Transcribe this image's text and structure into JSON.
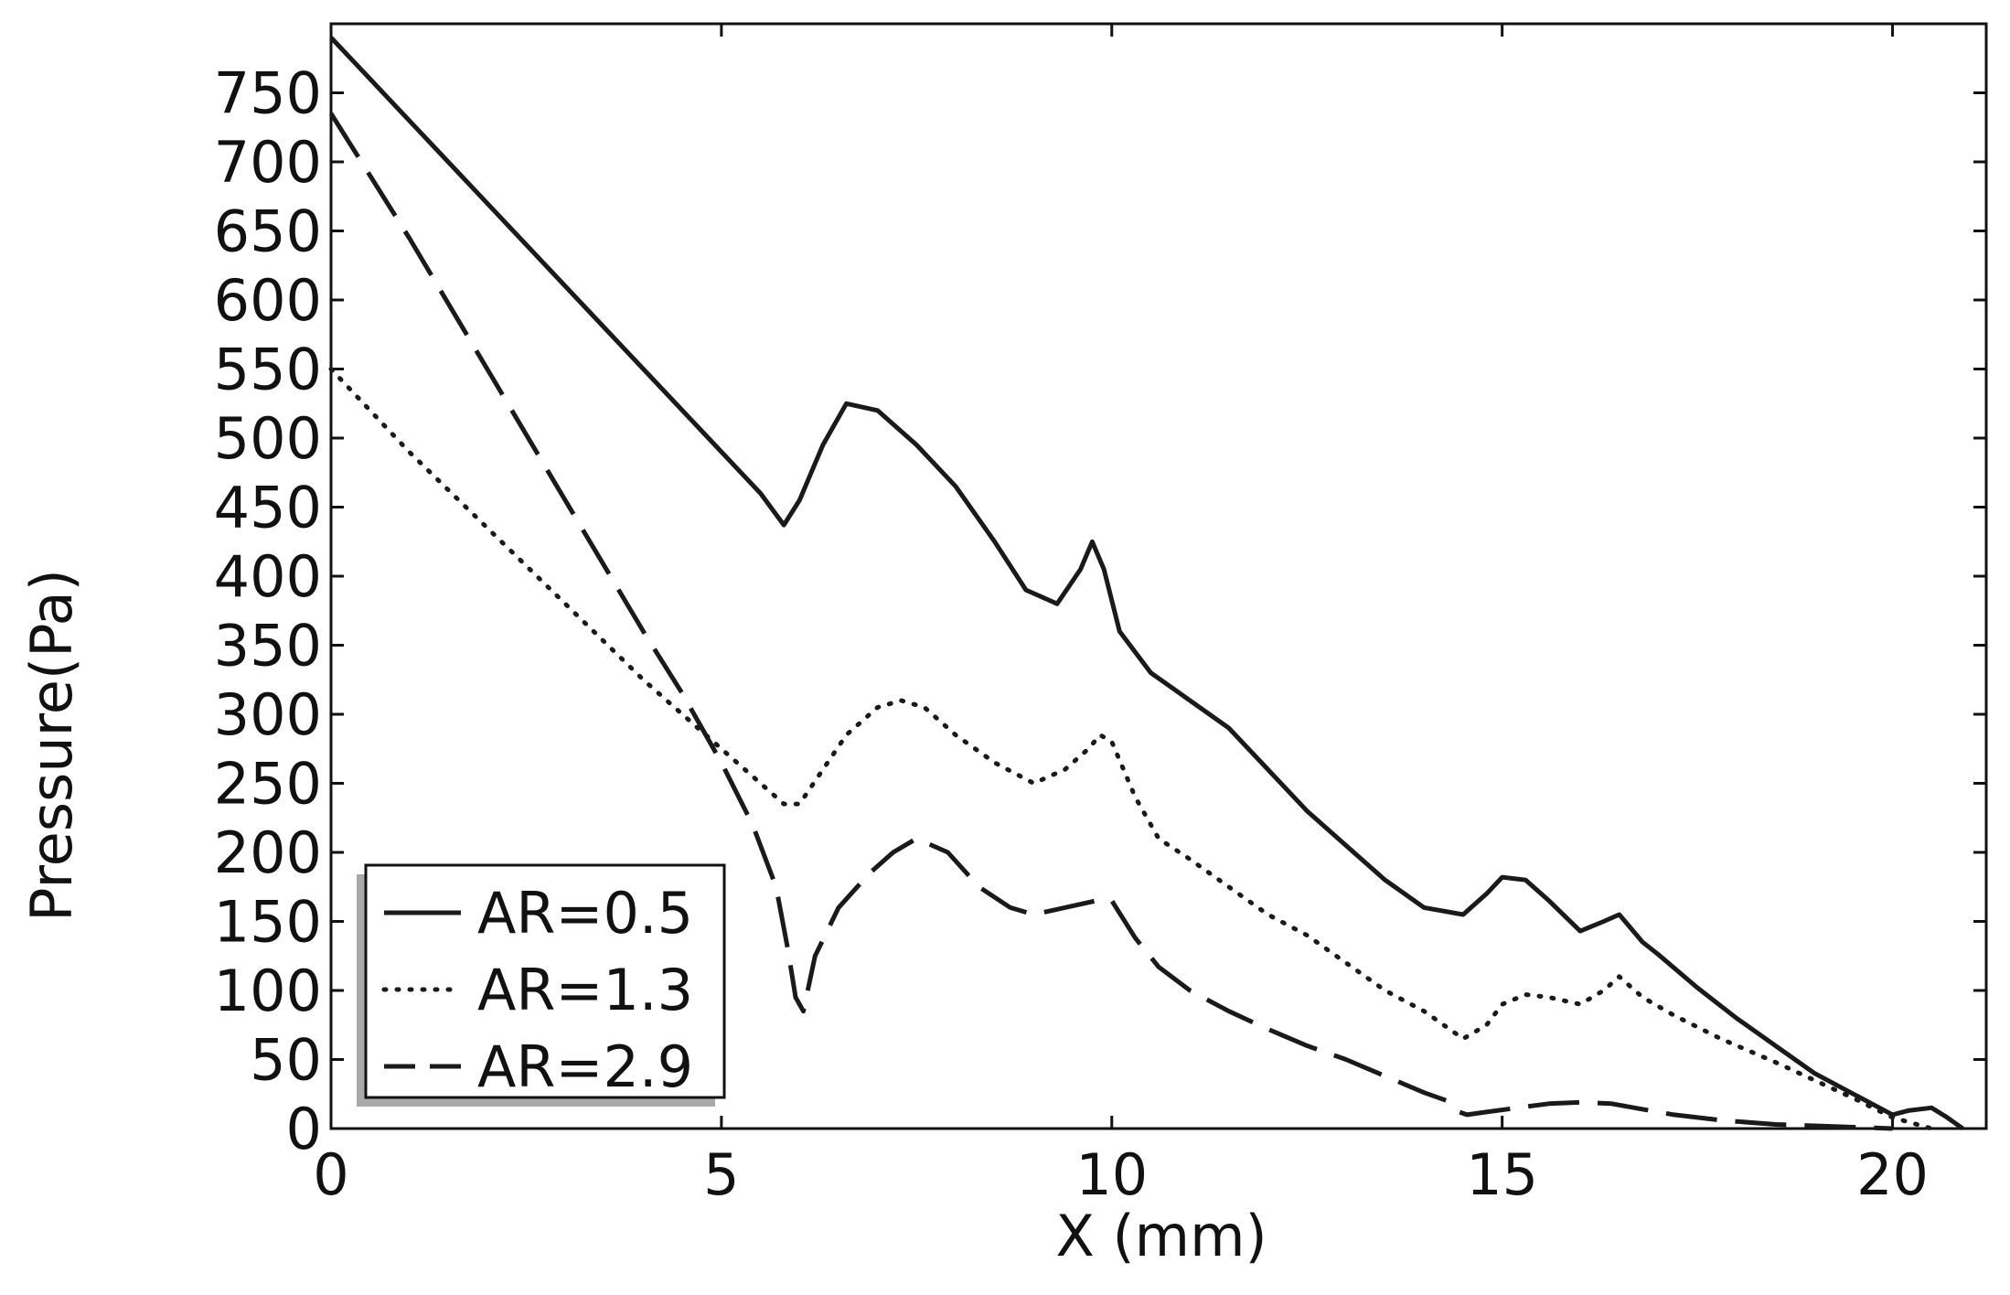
{
  "chart_data": {
    "type": "line",
    "title": "",
    "xlabel": "X (mm)",
    "ylabel": "Pressure(Pa)",
    "xlim": [
      0,
      21.2
    ],
    "ylim": [
      0,
      800
    ],
    "xticks": [
      0,
      5,
      10,
      15,
      20
    ],
    "xtick_labels": [
      "0",
      "5",
      "10",
      "15",
      "20"
    ],
    "yticks": [
      0,
      50,
      100,
      150,
      200,
      250,
      300,
      350,
      400,
      450,
      500,
      550,
      600,
      650,
      700,
      750
    ],
    "ytick_labels": [
      "0",
      "50",
      "100",
      "150",
      "200",
      "250",
      "300",
      "350",
      "400",
      "450",
      "500",
      "550",
      "600",
      "650",
      "700",
      "750"
    ],
    "grid": false,
    "legend_position": "bottom-left",
    "line_color": "#1a1a1a",
    "series": [
      {
        "name": "AR=0.5",
        "style": "solid",
        "x": [
          0,
          0.5,
          1,
          2,
          3,
          4,
          5,
          5.5,
          5.8,
          6.0,
          6.3,
          6.6,
          7.0,
          7.5,
          8.0,
          8.5,
          8.9,
          9.3,
          9.6,
          9.75,
          9.9,
          10.1,
          10.5,
          11,
          11.5,
          12,
          12.5,
          13,
          13.5,
          14,
          14.5,
          14.8,
          15.0,
          15.3,
          15.6,
          16.0,
          16.3,
          16.5,
          16.8,
          17,
          17.5,
          18,
          18.5,
          19,
          19.5,
          20,
          20.2,
          20.5,
          20.7,
          20.9
        ],
        "y": [
          790,
          760,
          730,
          670,
          610,
          550,
          490,
          460,
          437,
          455,
          495,
          525,
          520,
          495,
          465,
          425,
          390,
          380,
          405,
          425,
          405,
          360,
          330,
          310,
          290,
          260,
          230,
          205,
          180,
          160,
          155,
          170,
          182,
          180,
          165,
          143,
          150,
          155,
          135,
          126,
          102,
          80,
          60,
          40,
          25,
          10,
          13,
          15,
          8,
          0
        ]
      },
      {
        "name": "AR=1.3",
        "style": "dotted",
        "x": [
          0,
          1,
          2,
          3,
          4,
          5,
          5.5,
          5.8,
          6.0,
          6.3,
          6.6,
          7.0,
          7.3,
          7.6,
          8.0,
          8.5,
          9.0,
          9.4,
          9.7,
          9.85,
          10.0,
          10.3,
          10.6,
          11,
          11.5,
          12,
          12.5,
          13,
          13.5,
          14,
          14.5,
          14.8,
          15.0,
          15.3,
          15.6,
          16.0,
          16.3,
          16.5,
          16.8,
          17.2,
          17.8,
          18.5,
          19,
          19.5,
          20,
          20.5
        ],
        "y": [
          550,
          490,
          435,
          380,
          325,
          275,
          250,
          235,
          235,
          260,
          285,
          305,
          310,
          305,
          285,
          265,
          250,
          260,
          275,
          285,
          280,
          240,
          210,
          195,
          175,
          155,
          140,
          120,
          100,
          85,
          65,
          75,
          90,
          97,
          95,
          90,
          100,
          110,
          95,
          82,
          65,
          48,
          35,
          22,
          8,
          0
        ]
      },
      {
        "name": "AR=2.9",
        "style": "dashed",
        "x": [
          0,
          0.5,
          1,
          2,
          3,
          4,
          4.5,
          5,
          5.4,
          5.7,
          5.85,
          5.95,
          6.05,
          6.2,
          6.5,
          6.9,
          7.2,
          7.5,
          7.9,
          8.3,
          8.7,
          9.0,
          9.4,
          9.8,
          10.0,
          10.3,
          10.6,
          11,
          11.5,
          12,
          12.5,
          13,
          13.5,
          14,
          14.3,
          14.45,
          14.55,
          14.8,
          15.2,
          15.6,
          16.0,
          16.4,
          16.8,
          17.2,
          17.8,
          18.5,
          19,
          19.5,
          20
        ],
        "y": [
          735,
          690,
          645,
          550,
          455,
          360,
          315,
          265,
          220,
          175,
          130,
          95,
          85,
          125,
          160,
          185,
          200,
          210,
          200,
          175,
          160,
          155,
          160,
          165,
          165,
          138,
          117,
          100,
          85,
          72,
          60,
          50,
          38,
          26,
          20,
          12,
          10,
          12,
          15,
          18,
          19,
          18,
          14,
          10,
          6,
          3,
          2,
          1,
          0
        ]
      }
    ]
  }
}
